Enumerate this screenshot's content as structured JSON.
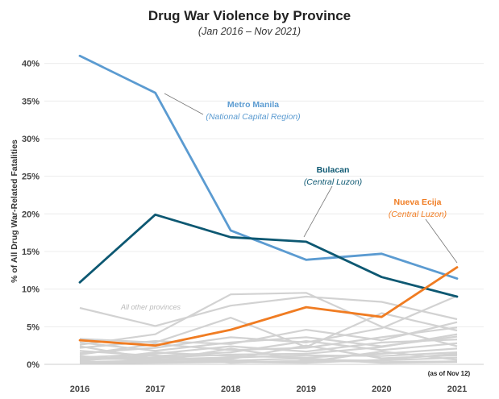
{
  "chart_data": {
    "type": "line",
    "title": "Drug War Violence by Province",
    "subtitle": "(Jan 2016 – Nov 2021)",
    "ylabel": "% of All Drug War-Related Fatalities",
    "xlabel": "",
    "x": [
      "2016",
      "2017",
      "2018",
      "2019",
      "2020",
      "2021"
    ],
    "x_note": "(as of Nov 12)",
    "ylim": [
      0,
      42
    ],
    "yticks": [
      0,
      5,
      10,
      15,
      20,
      25,
      30,
      35,
      40
    ],
    "ytick_labels": [
      "0%",
      "5%",
      "10%",
      "15%",
      "20%",
      "25%",
      "30%",
      "35%",
      "40%"
    ],
    "grid": true,
    "series": [
      {
        "name": "Metro Manila",
        "region": "(National Capital Region)",
        "color": "#5b9bd1",
        "values": [
          41.0,
          36.1,
          17.8,
          13.9,
          14.7,
          11.4
        ]
      },
      {
        "name": "Bulacan",
        "region": "(Central Luzon)",
        "color": "#0d5872",
        "values": [
          10.9,
          19.9,
          16.9,
          16.3,
          11.6,
          9.0
        ]
      },
      {
        "name": "Nueva Ecija",
        "region": "(Central Luzon)",
        "color": "#f07c22",
        "values": [
          3.2,
          2.5,
          4.6,
          7.6,
          6.3,
          12.9
        ]
      }
    ],
    "other_label": "All other provinces",
    "other_color": "#d2d2d2",
    "other_series": [
      [
        7.5,
        5.1,
        7.8,
        9.0,
        8.3,
        6.0
      ],
      [
        2.6,
        4.0,
        9.3,
        9.5,
        5.0,
        2.4
      ],
      [
        3.4,
        2.9,
        6.2,
        2.3,
        6.8,
        4.5
      ],
      [
        2.2,
        3.1,
        2.7,
        4.6,
        3.2,
        5.6
      ],
      [
        1.5,
        2.2,
        3.6,
        2.9,
        4.8,
        9.1
      ],
      [
        2.9,
        1.8,
        2.9,
        3.6,
        2.4,
        3.7
      ],
      [
        1.3,
        2.7,
        1.9,
        2.2,
        3.6,
        4.9
      ],
      [
        0.9,
        1.4,
        2.4,
        1.7,
        2.9,
        3.3
      ],
      [
        1.8,
        1.1,
        1.6,
        3.1,
        1.9,
        2.8
      ],
      [
        0.6,
        0.9,
        1.3,
        1.4,
        2.3,
        4.0
      ],
      [
        0.4,
        1.6,
        1.1,
        0.9,
        1.4,
        2.1
      ],
      [
        2.4,
        0.7,
        0.9,
        1.2,
        1.1,
        1.6
      ],
      [
        0.3,
        0.5,
        0.7,
        2.5,
        0.8,
        1.2
      ],
      [
        1.1,
        0.4,
        2.1,
        0.6,
        0.5,
        0.9
      ],
      [
        0.2,
        0.3,
        0.4,
        0.3,
        1.7,
        0.6
      ],
      [
        0.5,
        1.2,
        0.2,
        0.5,
        0.3,
        0.4
      ],
      [
        0.1,
        0.2,
        0.3,
        0.2,
        0.6,
        1.4
      ],
      [
        0.8,
        0.6,
        0.5,
        0.8,
        0.2,
        0.3
      ]
    ]
  }
}
